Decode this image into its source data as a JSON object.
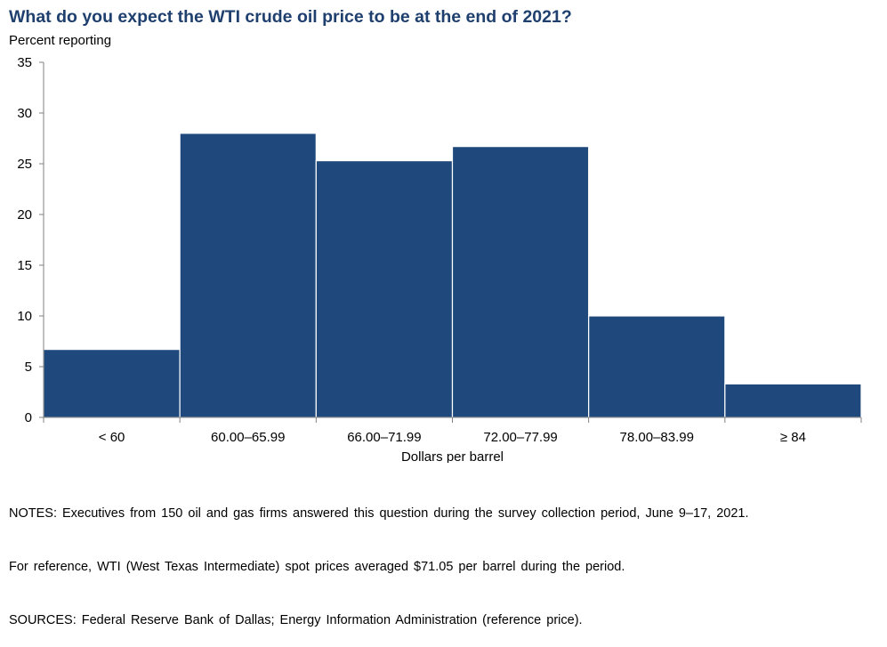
{
  "title": "What do you expect the WTI crude oil price to be at the end of 2021?",
  "colors": {
    "bar": "#1f497d",
    "title": "#1f3f6e",
    "axis": "#808080"
  },
  "chart_data": {
    "type": "bar",
    "title": "What do you expect the WTI crude oil price to be at the end of 2021?",
    "ylabel": "Percent reporting",
    "xlabel": "Dollars per barrel",
    "categories": [
      "< 60",
      "60.00–65.99",
      "66.00–71.99",
      "72.00–77.99",
      "78.00–83.99",
      "≥ 84"
    ],
    "values": [
      6.7,
      28.0,
      25.3,
      26.7,
      10.0,
      3.3
    ],
    "ylim": [
      0,
      35
    ],
    "yticks": [
      0,
      5,
      10,
      15,
      20,
      25,
      30,
      35
    ],
    "grid": false,
    "legend": "none"
  },
  "notes": [
    "NOTES:  Executives  from  150  oil  and  gas  firms  answered  this  question  during  the  survey  collection  period,  June  9–17,  2021.",
    "For  reference,  WTI  (West  Texas  Intermediate)  spot  prices  averaged  $71.05  per  barrel  during  the  period.",
    "SOURCES:  Federal  Reserve  Bank  of  Dallas;  Energy  Information  Administration  (reference  price)."
  ]
}
